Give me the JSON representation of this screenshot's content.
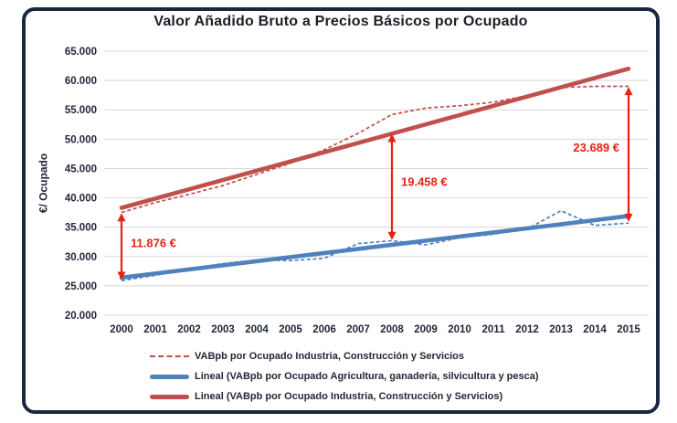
{
  "colors": {
    "background": "#ffffff",
    "frame_border": "#1a2740",
    "title_text": "#1b1e27",
    "axis_text": "#222838",
    "gridline": "#d8d8d8",
    "annotation_red": "#e42313",
    "series_red": "#C0504D",
    "series_blue": "#4F81BD"
  },
  "chart_data": {
    "type": "line",
    "title": "Valor Añadido Bruto a Precios Básicos por Ocupado",
    "ylabel": "€/ Ocupado",
    "xlabel": "",
    "x": [
      2000,
      2001,
      2002,
      2003,
      2004,
      2005,
      2006,
      2007,
      2008,
      2009,
      2010,
      2011,
      2012,
      2013,
      2014,
      2015
    ],
    "ylim": [
      20000,
      65000
    ],
    "grid": "horizontal",
    "legend_position": "bottom",
    "yticks": [
      {
        "value": 65000,
        "label": "65.000"
      },
      {
        "value": 60000,
        "label": "60.000"
      },
      {
        "value": 55000,
        "label": "55.000"
      },
      {
        "value": 50000,
        "label": "50.000"
      },
      {
        "value": 45000,
        "label": "45.000"
      },
      {
        "value": 40000,
        "label": "40.000"
      },
      {
        "value": 35000,
        "label": "35.000"
      },
      {
        "value": 30000,
        "label": "30.000"
      },
      {
        "value": 25000,
        "label": "25.000"
      },
      {
        "value": 20000,
        "label": "20.000"
      }
    ],
    "series": [
      {
        "name": "VABpb por Ocupado Industria, Construcción y Servicios",
        "style": "dashed",
        "color": "#C0504D",
        "values": [
          37500,
          39200,
          40600,
          42100,
          44000,
          45900,
          48200,
          51000,
          54200,
          55300,
          55700,
          56300,
          57400,
          58800,
          59000,
          59000
        ]
      },
      {
        "name": "VABpb por Ocupado Agricultura, ganadería, silvicultura y pesca",
        "style": "dashed",
        "color": "#4F81BD",
        "values": [
          25900,
          26800,
          27900,
          28800,
          29400,
          29300,
          29700,
          32200,
          32700,
          32000,
          33200,
          33800,
          34700,
          37800,
          35300,
          35700
        ]
      }
    ],
    "trendlines": [
      {
        "name": "Lineal (VABpb por Ocupado Agricultura, ganadería, silvicultura y pesca)",
        "color": "#4F81BD",
        "start": 26400,
        "end": 36900
      },
      {
        "name": "Lineal (VABpb por Ocupado Industria, Construcción y Servicios)",
        "color": "#C0504D",
        "start": 38300,
        "end": 62000
      }
    ],
    "annotations": [
      {
        "label": "11.876 €",
        "x": 2000,
        "from": 26000,
        "to": 37400,
        "side": "right",
        "label_v": 32300
      },
      {
        "label": "19.458 €",
        "x": 2008,
        "from": 32800,
        "to": 50900,
        "side": "right",
        "label_v": 42700
      },
      {
        "label": "23.689 €",
        "x": 2015,
        "from": 35900,
        "to": 58900,
        "side": "left",
        "label_v": 48600
      }
    ],
    "legend": [
      {
        "label": "VABpb por Ocupado Industria, Construcción y Servicios",
        "marker": "dashed",
        "color": "#C0504D"
      },
      {
        "label": "Lineal (VABpb por Ocupado Agricultura, ganadería, silvicultura y pesca)",
        "marker": "solid",
        "color": "#4F81BD"
      },
      {
        "label": "Lineal (VABpb por Ocupado Industria, Construcción y Servicios)",
        "marker": "solid",
        "color": "#C0504D"
      }
    ]
  }
}
